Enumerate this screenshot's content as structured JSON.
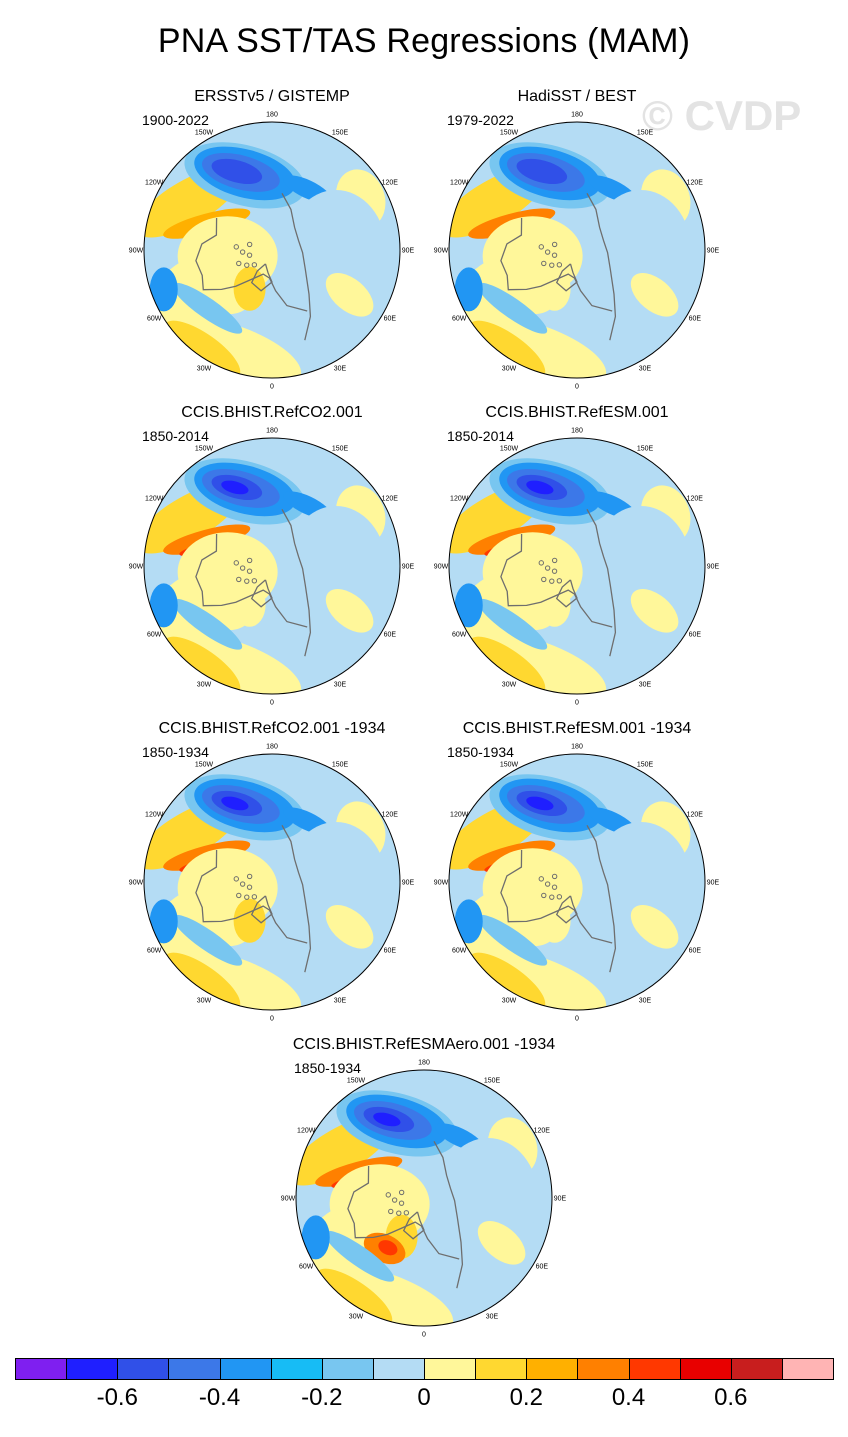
{
  "page": {
    "title": "PNA SST/TAS Regressions (MAM)",
    "watermark": "© CVDP"
  },
  "panels": [
    {
      "title": "ERSSTv5 / GISTEMP",
      "years": "1900-2022"
    },
    {
      "title": "HadiSST / BEST",
      "years": "1979-2022"
    },
    {
      "title": "CCIS.BHIST.RefCO2.001",
      "years": "1850-2014"
    },
    {
      "title": "CCIS.BHIST.RefESM.001",
      "years": "1850-2014"
    },
    {
      "title": "CCIS.BHIST.RefCO2.001 -1934",
      "years": "1850-1934"
    },
    {
      "title": "CCIS.BHIST.RefESM.001 -1934",
      "years": "1850-1934"
    },
    {
      "title": "CCIS.BHIST.RefESMAero.001 -1934",
      "years": "1850-1934"
    }
  ],
  "lon_labels": [
    "180",
    "150E",
    "120E",
    "90E",
    "60E",
    "30E",
    "0",
    "30W",
    "60W",
    "90W",
    "120W",
    "150W"
  ],
  "colorbar": {
    "colors": [
      "#7f1ff0",
      "#1f1fff",
      "#3050e8",
      "#3c78e8",
      "#2196f3",
      "#17bcf5",
      "#78c6f0",
      "#b4dcf4",
      "#fff79a",
      "#ffd830",
      "#ffb000",
      "#ff8000",
      "#ff3800",
      "#e80000",
      "#c81e1e",
      "#ffb4b4"
    ],
    "tick_labels": [
      "-0.6",
      "-0.4",
      "-0.2",
      "0",
      "0.2",
      "0.4",
      "0.6"
    ]
  },
  "colors": {
    "ocean_base": "#b4dcf4",
    "land": "#fff79a",
    "coast": "#6e6e6e"
  }
}
